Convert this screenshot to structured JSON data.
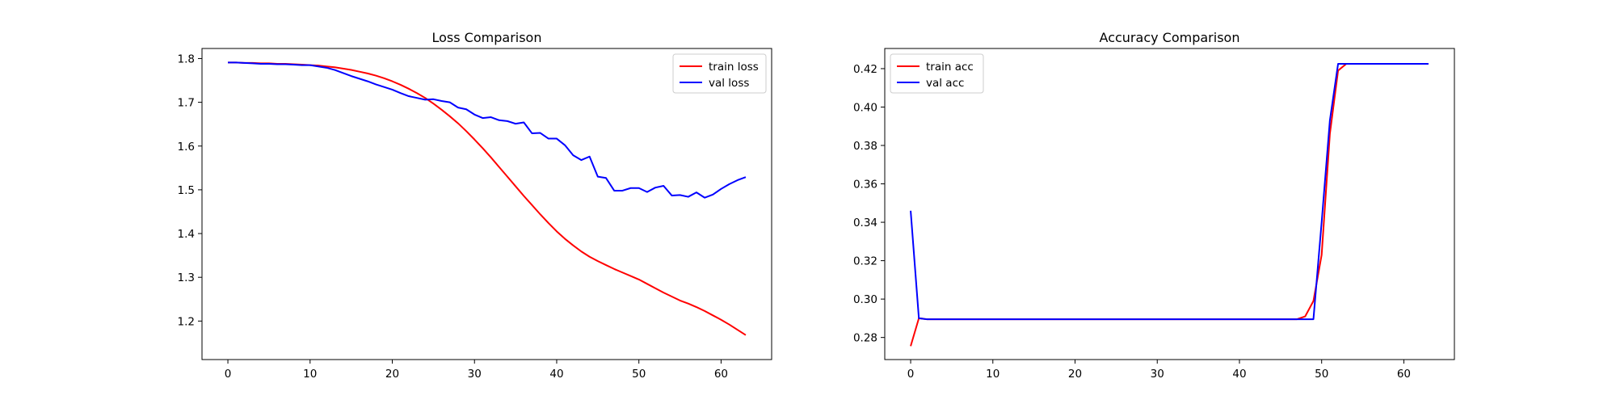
{
  "chart_data": [
    {
      "type": "line",
      "title": "Loss Comparison",
      "xlabel": "",
      "ylabel": "",
      "xlim": [
        -3.15,
        66.15
      ],
      "ylim": [
        1.112,
        1.823
      ],
      "xticks": [
        "0",
        "10",
        "20",
        "30",
        "40",
        "50",
        "60"
      ],
      "yticks": [
        "1.2",
        "1.3",
        "1.4",
        "1.5",
        "1.6",
        "1.7",
        "1.8"
      ],
      "legend_position": "top-right",
      "grid": false,
      "series": [
        {
          "name": "train loss",
          "color": "#ff0000",
          "x": [
            0,
            1,
            2,
            3,
            4,
            5,
            6,
            7,
            8,
            9,
            10,
            11,
            12,
            13,
            14,
            15,
            16,
            17,
            18,
            19,
            20,
            21,
            22,
            23,
            24,
            25,
            26,
            27,
            28,
            29,
            30,
            31,
            32,
            33,
            34,
            35,
            36,
            37,
            38,
            39,
            40,
            41,
            42,
            43,
            44,
            45,
            46,
            47,
            48,
            49,
            50,
            51,
            52,
            53,
            54,
            55,
            56,
            57,
            58,
            59,
            60,
            61,
            62,
            63
          ],
          "values": [
            1.791,
            1.791,
            1.79,
            1.79,
            1.789,
            1.789,
            1.788,
            1.788,
            1.787,
            1.786,
            1.785,
            1.784,
            1.782,
            1.78,
            1.777,
            1.774,
            1.77,
            1.766,
            1.761,
            1.755,
            1.748,
            1.74,
            1.731,
            1.721,
            1.71,
            1.697,
            1.683,
            1.668,
            1.652,
            1.634,
            1.615,
            1.595,
            1.574,
            1.552,
            1.53,
            1.508,
            1.486,
            1.465,
            1.444,
            1.424,
            1.405,
            1.388,
            1.373,
            1.359,
            1.347,
            1.337,
            1.328,
            1.319,
            1.311,
            1.303,
            1.295,
            1.285,
            1.275,
            1.265,
            1.256,
            1.247,
            1.24,
            1.232,
            1.223,
            1.213,
            1.203,
            1.192,
            1.18,
            1.168
          ]
        },
        {
          "name": "val loss",
          "color": "#0000ff",
          "x": [
            0,
            1,
            2,
            3,
            4,
            5,
            6,
            7,
            8,
            9,
            10,
            11,
            12,
            13,
            14,
            15,
            16,
            17,
            18,
            19,
            20,
            21,
            22,
            23,
            24,
            25,
            26,
            27,
            28,
            29,
            30,
            31,
            32,
            33,
            34,
            35,
            36,
            37,
            38,
            39,
            40,
            41,
            42,
            43,
            44,
            45,
            46,
            47,
            48,
            49,
            50,
            51,
            52,
            53,
            54,
            55,
            56,
            57,
            58,
            59,
            60,
            61,
            62,
            63
          ],
          "values": [
            1.791,
            1.791,
            1.79,
            1.789,
            1.788,
            1.788,
            1.787,
            1.787,
            1.786,
            1.785,
            1.785,
            1.782,
            1.779,
            1.774,
            1.767,
            1.76,
            1.754,
            1.748,
            1.741,
            1.735,
            1.729,
            1.721,
            1.714,
            1.71,
            1.706,
            1.707,
            1.703,
            1.7,
            1.688,
            1.684,
            1.672,
            1.664,
            1.666,
            1.659,
            1.657,
            1.651,
            1.654,
            1.629,
            1.63,
            1.617,
            1.617,
            1.602,
            1.579,
            1.568,
            1.576,
            1.53,
            1.527,
            1.498,
            1.498,
            1.504,
            1.504,
            1.495,
            1.505,
            1.509,
            1.487,
            1.488,
            1.484,
            1.494,
            1.482,
            1.489,
            1.502,
            1.513,
            1.522,
            1.529
          ]
        }
      ]
    },
    {
      "type": "line",
      "title": "Accuracy Comparison",
      "xlabel": "",
      "ylabel": "",
      "xlim": [
        -3.15,
        66.15
      ],
      "ylim": [
        0.2685,
        0.4305
      ],
      "xticks": [
        "0",
        "10",
        "20",
        "30",
        "40",
        "50",
        "60"
      ],
      "yticks": [
        "0.28",
        "0.30",
        "0.32",
        "0.34",
        "0.36",
        "0.38",
        "0.40",
        "0.42"
      ],
      "legend_position": "top-left",
      "grid": false,
      "series": [
        {
          "name": "train acc",
          "color": "#ff0000",
          "x": [
            0,
            1,
            2,
            3,
            4,
            5,
            6,
            7,
            8,
            9,
            10,
            11,
            12,
            13,
            14,
            15,
            16,
            17,
            18,
            19,
            20,
            21,
            22,
            23,
            24,
            25,
            26,
            27,
            28,
            29,
            30,
            31,
            32,
            33,
            34,
            35,
            36,
            37,
            38,
            39,
            40,
            41,
            42,
            43,
            44,
            45,
            46,
            47,
            48,
            49,
            50,
            51,
            52,
            53,
            54,
            55,
            56,
            57,
            58,
            59,
            60,
            61,
            62,
            63
          ],
          "values": [
            0.2755,
            0.29,
            0.2895,
            0.2895,
            0.2895,
            0.2895,
            0.2895,
            0.2895,
            0.2895,
            0.2895,
            0.2895,
            0.2895,
            0.2895,
            0.2895,
            0.2895,
            0.2895,
            0.2895,
            0.2895,
            0.2895,
            0.2895,
            0.2895,
            0.2895,
            0.2895,
            0.2895,
            0.2895,
            0.2895,
            0.2895,
            0.2895,
            0.2895,
            0.2895,
            0.2895,
            0.2895,
            0.2895,
            0.2895,
            0.2895,
            0.2895,
            0.2895,
            0.2895,
            0.2895,
            0.2895,
            0.2895,
            0.2895,
            0.2895,
            0.2895,
            0.2895,
            0.2895,
            0.2895,
            0.2895,
            0.291,
            0.299,
            0.323,
            0.386,
            0.419,
            0.4225,
            0.4225,
            0.4225,
            0.4225,
            0.4225,
            0.4225,
            0.4225,
            0.4225,
            0.4225,
            0.4225,
            0.4225
          ]
        },
        {
          "name": "val acc",
          "color": "#0000ff",
          "x": [
            0,
            1,
            2,
            3,
            4,
            5,
            6,
            7,
            8,
            9,
            10,
            11,
            12,
            13,
            14,
            15,
            16,
            17,
            18,
            19,
            20,
            21,
            22,
            23,
            24,
            25,
            26,
            27,
            28,
            29,
            30,
            31,
            32,
            33,
            34,
            35,
            36,
            37,
            38,
            39,
            40,
            41,
            42,
            43,
            44,
            45,
            46,
            47,
            48,
            49,
            50,
            51,
            52,
            53,
            54,
            55,
            56,
            57,
            58,
            59,
            60,
            61,
            62,
            63
          ],
          "values": [
            0.346,
            0.29,
            0.2895,
            0.2895,
            0.2895,
            0.2895,
            0.2895,
            0.2895,
            0.2895,
            0.2895,
            0.2895,
            0.2895,
            0.2895,
            0.2895,
            0.2895,
            0.2895,
            0.2895,
            0.2895,
            0.2895,
            0.2895,
            0.2895,
            0.2895,
            0.2895,
            0.2895,
            0.2895,
            0.2895,
            0.2895,
            0.2895,
            0.2895,
            0.2895,
            0.2895,
            0.2895,
            0.2895,
            0.2895,
            0.2895,
            0.2895,
            0.2895,
            0.2895,
            0.2895,
            0.2895,
            0.2895,
            0.2895,
            0.2895,
            0.2895,
            0.2895,
            0.2895,
            0.2895,
            0.2895,
            0.2895,
            0.2895,
            0.34,
            0.393,
            0.4225,
            0.4225,
            0.4225,
            0.4225,
            0.4225,
            0.4225,
            0.4225,
            0.4225,
            0.4225,
            0.4225,
            0.4225,
            0.4225
          ]
        }
      ]
    }
  ]
}
